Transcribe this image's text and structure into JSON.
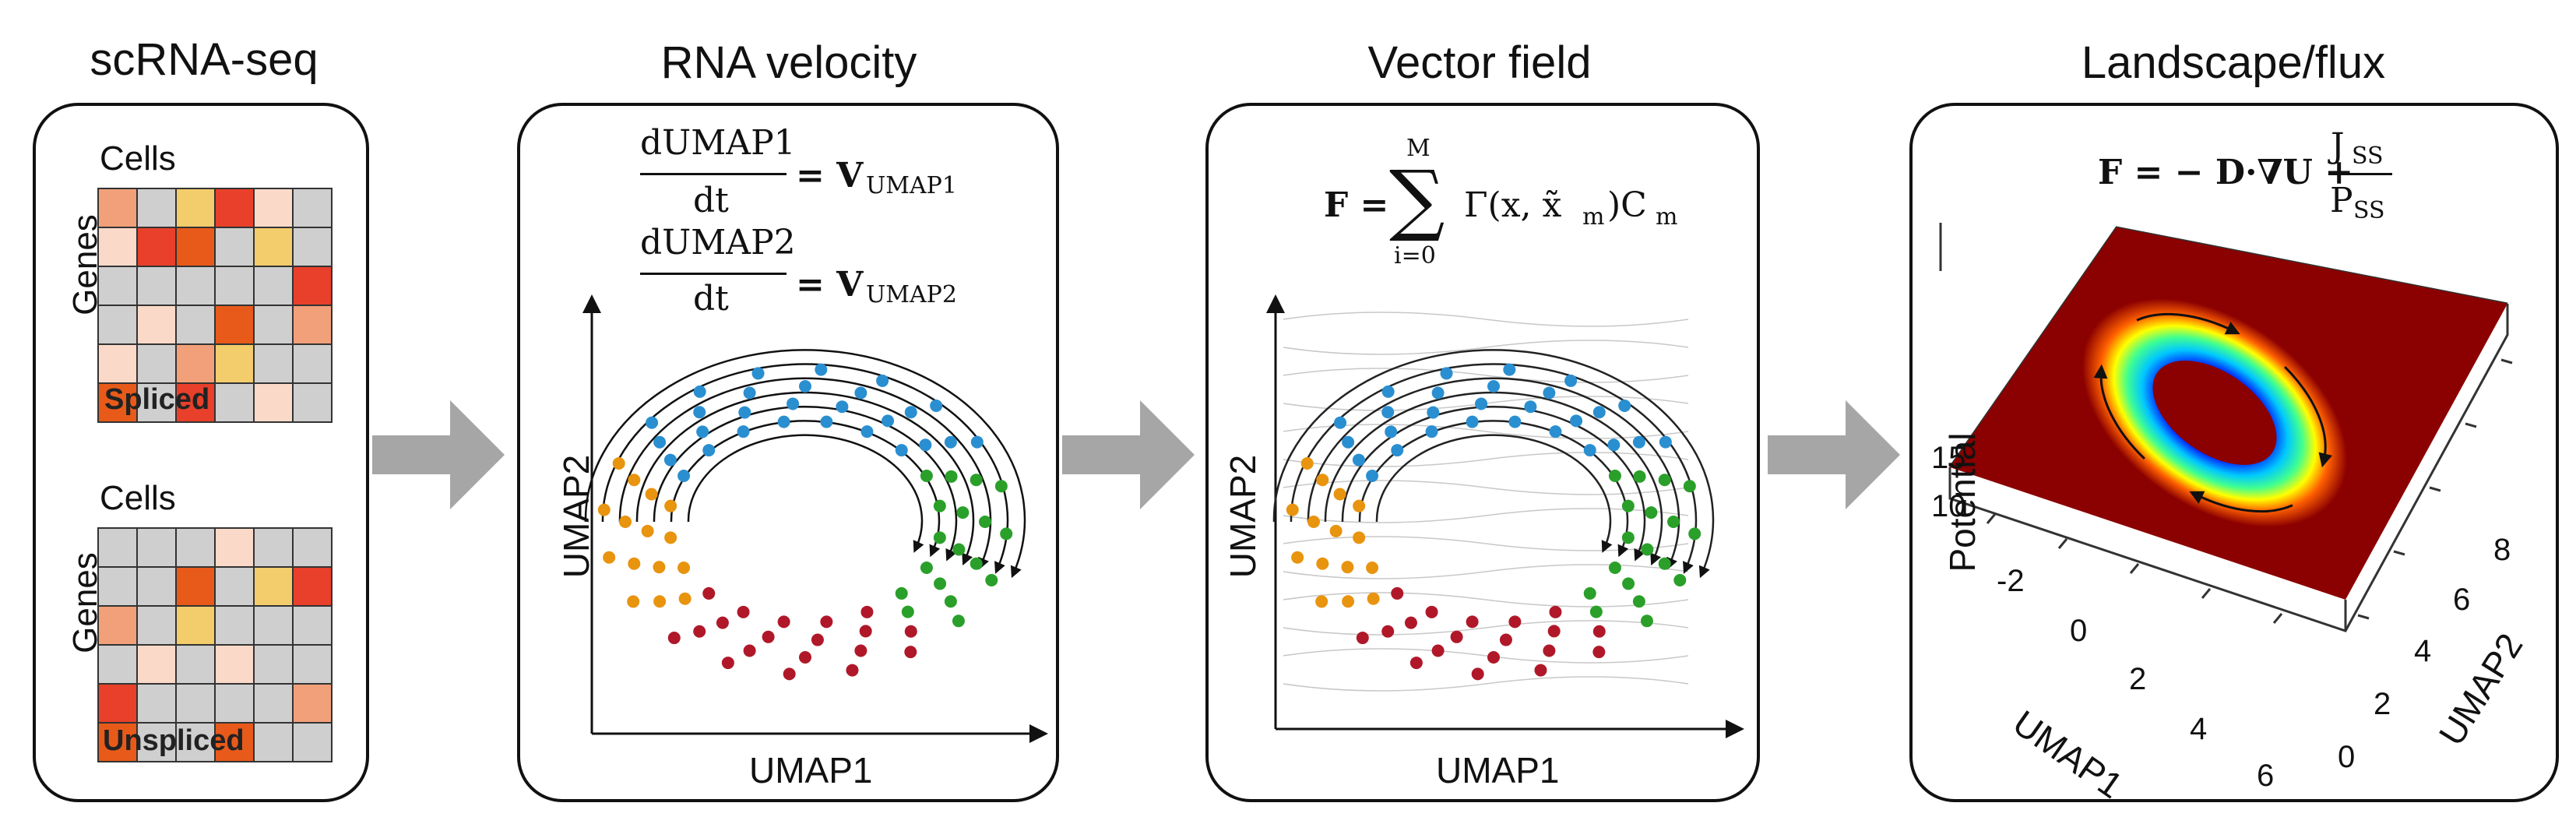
{
  "panels": [
    {
      "title": "scRNA-seq",
      "matrices": [
        {
          "col_label": "Cells",
          "row_label": "Genes",
          "name": "Spliced"
        },
        {
          "col_label": "Cells",
          "row_label": "Genes",
          "name": "Unspliced"
        }
      ]
    },
    {
      "title": "RNA velocity",
      "equation1": {
        "num": "dUMAP1",
        "den": "dt",
        "rhs": "= V",
        "sub": "UMAP1"
      },
      "equation2": {
        "num": "dUMAP2",
        "den": "dt",
        "rhs": "= V",
        "sub": "UMAP2"
      },
      "xlabel": "UMAP1",
      "ylabel": "UMAP2"
    },
    {
      "title": "Vector field",
      "equation": {
        "lhs": "F =",
        "sum_top": "M",
        "sum_bottom": "i=0",
        "rhs": "Γ(x, x̃",
        "rhs_sub": "m",
        "rhs_end": ")C",
        "rhs_end_sub": "m"
      },
      "xlabel": "UMAP1",
      "ylabel": "UMAP2"
    },
    {
      "title": "Landscape/flux",
      "equation": {
        "lhs": "F = − D·∇U +",
        "num": "J",
        "num_sub": "SS",
        "den": "P",
        "den_sub": "SS"
      },
      "zlabel": "Potential",
      "z_ticks": [
        "15",
        "10"
      ],
      "y_ticks_left": [
        "-2",
        "0",
        "2",
        "4",
        "6"
      ],
      "x_label": "UMAP1",
      "right_ticks": [
        "0",
        "2",
        "4",
        "6",
        "8"
      ],
      "right_label": "UMAP2"
    }
  ],
  "colors": {
    "cluster_blue": "#2a8fd0",
    "cluster_green": "#2aa02a",
    "cluster_orange": "#e8940f",
    "cluster_red": "#b0182a",
    "arrow_gray": "#a6a6a6",
    "landscape_bg": "#8b0000"
  }
}
